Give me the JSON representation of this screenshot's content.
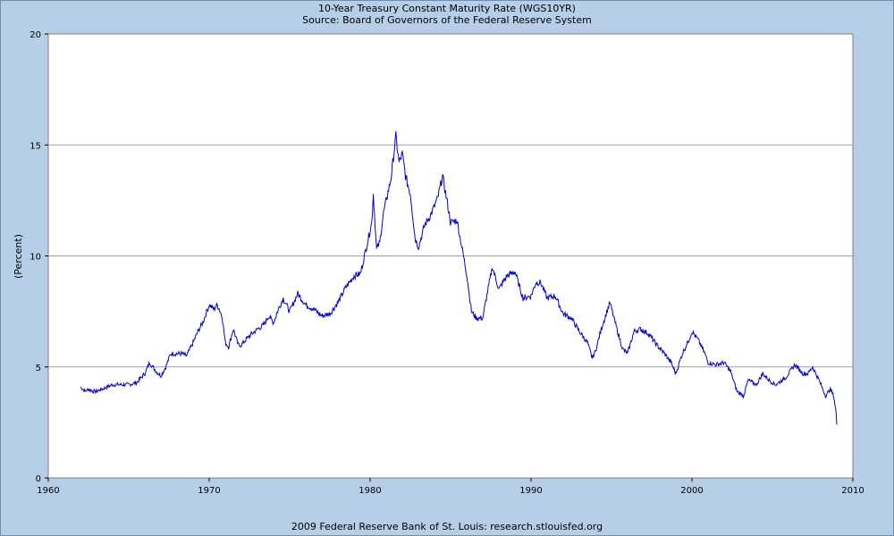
{
  "chart_data": {
    "type": "line",
    "title": "10-Year Treasury Constant Maturity Rate (WGS10YR)",
    "subtitle": "Source: Board of Governors of the Federal Reserve System",
    "footer": "2009 Federal Reserve Bank of St. Louis: research.stlouisfed.org",
    "xlabel": "",
    "ylabel": "(Percent)",
    "xlim": [
      1960,
      2010
    ],
    "ylim": [
      0,
      20
    ],
    "xticks": [
      1960,
      1970,
      1980,
      1990,
      2000,
      2010
    ],
    "yticks": [
      0,
      5,
      10,
      15,
      20
    ],
    "grid": {
      "horizontal": true,
      "vertical": false
    },
    "colors": {
      "line": "#0000CC",
      "background": "#B6CEE6",
      "plot": "#FFFFFF",
      "grid": "#A0A0A0"
    },
    "series": [
      {
        "x": [
          1962.0,
          1962.3,
          1962.5,
          1962.8,
          1963.0,
          1963.5,
          1964.0,
          1964.5,
          1965.0,
          1965.5,
          1966.0,
          1966.3,
          1966.7,
          1967.0,
          1967.3,
          1967.6,
          1968.0,
          1968.3,
          1968.6,
          1969.0,
          1969.3,
          1969.6,
          1970.0,
          1970.3,
          1970.5,
          1970.8,
          1971.0,
          1971.2,
          1971.5,
          1971.8,
          1972.0,
          1972.5,
          1973.0,
          1973.4,
          1973.7,
          1974.0,
          1974.3,
          1974.6,
          1975.0,
          1975.5,
          1976.0,
          1976.5,
          1977.0,
          1977.5,
          1978.0,
          1978.5,
          1979.0,
          1979.4,
          1979.8,
          1980.1,
          1980.2,
          1980.4,
          1980.6,
          1980.8,
          1981.0,
          1981.3,
          1981.6,
          1981.8,
          1982.0,
          1982.2,
          1982.5,
          1982.8,
          1983.0,
          1983.4,
          1983.8,
          1984.2,
          1984.5,
          1984.8,
          1985.0,
          1985.4,
          1985.7,
          1986.0,
          1986.3,
          1986.6,
          1987.0,
          1987.3,
          1987.6,
          1987.8,
          1988.0,
          1988.5,
          1989.0,
          1989.5,
          1990.0,
          1990.3,
          1990.6,
          1991.0,
          1991.5,
          1992.0,
          1992.5,
          1993.0,
          1993.5,
          1993.8,
          1994.0,
          1994.4,
          1994.9,
          1995.3,
          1995.7,
          1996.0,
          1996.4,
          1996.8,
          1997.3,
          1997.8,
          1998.3,
          1998.7,
          1999.0,
          1999.4,
          1999.8,
          2000.0,
          2000.4,
          2000.8,
          2001.0,
          2001.5,
          2002.0,
          2002.4,
          2002.8,
          2003.2,
          2003.5,
          2004.0,
          2004.4,
          2004.8,
          2005.2,
          2005.8,
          2006.4,
          2006.9,
          2007.2,
          2007.5,
          2007.9,
          2008.3,
          2008.6,
          2008.8,
          2008.95,
          2009.0
        ],
        "y": [
          4.1,
          3.9,
          4.0,
          3.9,
          3.9,
          4.05,
          4.2,
          4.2,
          4.2,
          4.3,
          4.7,
          5.2,
          4.8,
          4.6,
          5.0,
          5.6,
          5.6,
          5.6,
          5.5,
          6.1,
          6.6,
          7.0,
          7.8,
          7.6,
          7.8,
          7.3,
          6.1,
          5.9,
          6.7,
          6.0,
          6.0,
          6.4,
          6.7,
          6.9,
          7.3,
          7.0,
          7.6,
          8.1,
          7.5,
          8.3,
          7.8,
          7.6,
          7.3,
          7.4,
          7.9,
          8.6,
          9.1,
          9.2,
          10.5,
          11.5,
          12.8,
          10.3,
          10.6,
          11.8,
          12.5,
          13.5,
          15.4,
          14.2,
          14.6,
          13.6,
          12.8,
          10.8,
          10.4,
          11.4,
          11.9,
          12.6,
          13.6,
          12.4,
          11.5,
          11.6,
          10.4,
          9.2,
          7.5,
          7.2,
          7.2,
          8.4,
          9.5,
          9.0,
          8.5,
          9.1,
          9.3,
          8.1,
          8.2,
          8.8,
          8.8,
          8.1,
          8.2,
          7.4,
          7.2,
          6.6,
          6.1,
          5.4,
          5.7,
          6.8,
          7.9,
          6.8,
          5.8,
          5.6,
          6.6,
          6.7,
          6.5,
          6.0,
          5.6,
          5.2,
          4.7,
          5.6,
          6.2,
          6.6,
          6.2,
          5.6,
          5.2,
          5.1,
          5.2,
          4.8,
          3.9,
          3.7,
          4.4,
          4.2,
          4.7,
          4.4,
          4.2,
          4.5,
          5.1,
          4.7,
          4.7,
          5.0,
          4.4,
          3.7,
          4.0,
          3.7,
          3.0,
          2.4
        ]
      }
    ]
  }
}
